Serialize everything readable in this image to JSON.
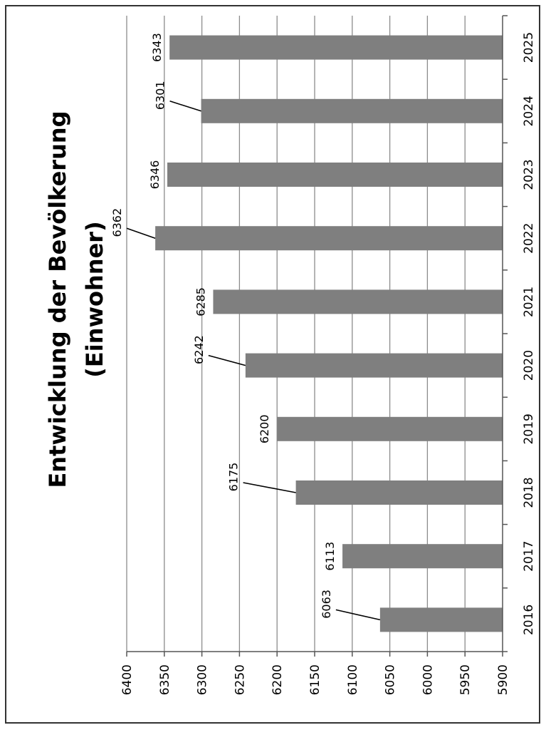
{
  "chart_data": {
    "type": "bar",
    "title": "Entwicklung der Bevölkerung (Einwohner)",
    "title_lines": [
      "Entwicklung der Bevölkerung",
      "(Einwohner)"
    ],
    "xlabel": "",
    "ylabel": "",
    "categories": [
      "2016",
      "2017",
      "2018",
      "2019",
      "2020",
      "2021",
      "2022",
      "2023",
      "2024",
      "2025"
    ],
    "values": [
      6063,
      6113,
      6175,
      6200,
      6242,
      6285,
      6362,
      6346,
      6301,
      6343
    ],
    "data_labels": [
      "6063",
      "6113",
      "6175",
      "6200",
      "6242",
      "6285",
      "6362",
      "6346",
      "6301",
      "6343"
    ],
    "ylim": [
      5900,
      6400
    ],
    "yticks": [
      5900,
      5950,
      6000,
      6050,
      6100,
      6150,
      6200,
      6250,
      6300,
      6350,
      6400
    ],
    "grid": true,
    "legend": "none",
    "orientation": "rotated 90 degrees clockwise",
    "colors": {
      "bar": "#7f7f7f",
      "grid": "#8c8c8c",
      "axis": "#555555",
      "frame": "#333333"
    }
  }
}
